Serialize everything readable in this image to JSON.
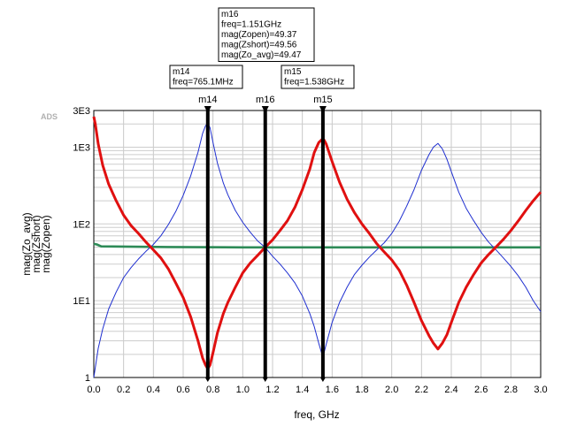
{
  "chart_data": {
    "type": "line",
    "app_tag": "ADS",
    "xlabel": "freq, GHz",
    "xlim": [
      0.0,
      3.0
    ],
    "x_ticks": [
      0.0,
      0.2,
      0.4,
      0.6,
      0.8,
      1.0,
      1.2,
      1.4,
      1.6,
      1.8,
      2.0,
      2.2,
      2.4,
      2.6,
      2.8,
      3.0
    ],
    "x_tick_labels": [
      "0.0",
      "0.2",
      "0.4",
      "0.6",
      "0.8",
      "1.0",
      "1.2",
      "1.4",
      "1.6",
      "1.8",
      "2.0",
      "2.2",
      "2.4",
      "2.6",
      "2.8",
      "3.0"
    ],
    "y_scale": "log",
    "ylim": [
      1,
      3000
    ],
    "y_ticks": [
      1,
      10,
      100,
      1000,
      3000
    ],
    "y_tick_labels": [
      "1",
      "1E1",
      "1E2",
      "1E3",
      "3E3"
    ],
    "legend_labels": [
      "mag(Zo_avg)",
      "mag(Zshort)",
      "mag(Zopen)"
    ],
    "series": [
      {
        "name": "mag(Zo_avg)",
        "color": "#2e8b57",
        "x": [
          0.0,
          0.02,
          0.05,
          0.5,
          1.0,
          1.5,
          2.0,
          2.5,
          3.0
        ],
        "values": [
          55,
          54,
          51,
          50,
          49.5,
          49.5,
          49.5,
          49.5,
          49.5
        ]
      },
      {
        "name": "mag(Zshort)",
        "color": "#1f2fd0",
        "x": [
          0.0,
          0.01,
          0.03,
          0.06,
          0.1,
          0.15,
          0.2,
          0.25,
          0.3,
          0.35,
          0.4,
          0.45,
          0.5,
          0.55,
          0.6,
          0.65,
          0.7,
          0.73,
          0.75,
          0.765,
          0.78,
          0.8,
          0.83,
          0.87,
          0.9,
          0.95,
          1.0,
          1.05,
          1.1,
          1.15,
          1.2,
          1.25,
          1.3,
          1.35,
          1.4,
          1.45,
          1.48,
          1.51,
          1.53,
          1.538,
          1.546,
          1.56,
          1.6,
          1.65,
          1.7,
          1.75,
          1.8,
          1.85,
          1.9,
          1.95,
          2.0,
          2.05,
          2.1,
          2.15,
          2.2,
          2.25,
          2.28,
          2.31,
          2.34,
          2.37,
          2.4,
          2.45,
          2.5,
          2.55,
          2.6,
          2.65,
          2.7,
          2.75,
          2.8,
          2.85,
          2.9,
          2.95,
          3.0
        ],
        "values": [
          1.0,
          1.35,
          2.4,
          4.3,
          7.8,
          13,
          20,
          27,
          35,
          44,
          54,
          70,
          98,
          145,
          235,
          420,
          860,
          1500,
          1900,
          2050,
          1800,
          1150,
          620,
          340,
          240,
          150,
          105,
          78,
          60,
          49.5,
          38,
          30,
          23,
          17,
          11.5,
          6.8,
          4.6,
          2.8,
          2.05,
          1.95,
          2.1,
          2.7,
          5.2,
          9.5,
          15,
          22,
          29,
          37,
          46,
          57,
          75,
          108,
          170,
          280,
          500,
          800,
          1000,
          1120,
          950,
          700,
          480,
          260,
          160,
          110,
          78,
          58,
          46,
          36,
          28,
          21,
          15,
          10,
          7.2
        ]
      },
      {
        "name": "mag(Zopen)",
        "color": "#e01010",
        "x": [
          0.0,
          0.01,
          0.03,
          0.06,
          0.1,
          0.15,
          0.2,
          0.25,
          0.3,
          0.35,
          0.4,
          0.45,
          0.5,
          0.55,
          0.6,
          0.65,
          0.7,
          0.73,
          0.75,
          0.765,
          0.78,
          0.8,
          0.83,
          0.87,
          0.9,
          0.95,
          1.0,
          1.05,
          1.1,
          1.15,
          1.2,
          1.25,
          1.3,
          1.35,
          1.4,
          1.45,
          1.48,
          1.51,
          1.53,
          1.538,
          1.546,
          1.56,
          1.6,
          1.65,
          1.7,
          1.75,
          1.8,
          1.85,
          1.9,
          1.95,
          2.0,
          2.05,
          2.1,
          2.15,
          2.2,
          2.25,
          2.28,
          2.31,
          2.34,
          2.37,
          2.4,
          2.45,
          2.5,
          2.55,
          2.6,
          2.65,
          2.7,
          2.75,
          2.8,
          2.85,
          2.9,
          2.95,
          3.0
        ],
        "values": [
          2500,
          2000,
          1100,
          580,
          330,
          200,
          130,
          95,
          75,
          58,
          46,
          36,
          26,
          17,
          11,
          6.2,
          3.0,
          1.8,
          1.45,
          1.3,
          1.45,
          2.1,
          3.8,
          6.8,
          9.5,
          15,
          23,
          31,
          39,
          49.5,
          62,
          82,
          110,
          165,
          280,
          520,
          850,
          1150,
          1250,
          1260,
          1240,
          1100,
          650,
          350,
          210,
          140,
          100,
          75,
          55,
          43,
          34,
          25,
          16,
          9.5,
          5.5,
          3.5,
          2.8,
          2.35,
          2.8,
          3.6,
          5.2,
          9.5,
          15,
          22,
          31,
          40,
          50,
          63,
          82,
          110,
          150,
          200,
          260
        ]
      }
    ],
    "markers": [
      {
        "name": "m14",
        "freq": 0.7651,
        "box_lines": [
          "m14",
          "freq=765.1MHz"
        ]
      },
      {
        "name": "m16",
        "freq": 1.151,
        "box_lines": [
          "m16",
          "freq=1.151GHz",
          "mag(Zopen)=49.37",
          "mag(Zshort)=49.56",
          "mag(Zo_avg)=49.47"
        ]
      },
      {
        "name": "m15",
        "freq": 1.538,
        "box_lines": [
          "m15",
          "freq=1.538GHz"
        ]
      }
    ]
  }
}
